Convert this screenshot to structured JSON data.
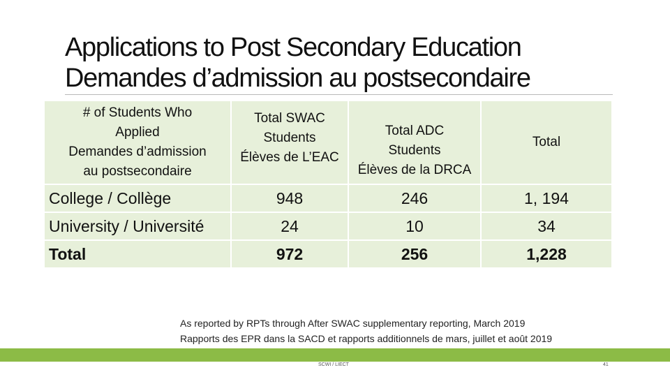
{
  "slide": {
    "title_line1": "Applications to Post Secondary Education",
    "title_line2": "Demandes d’admission au postsecondaire"
  },
  "table": {
    "headers": [
      [
        "# of Students Who",
        "Applied",
        "Demandes d’admission",
        "au postsecondaire"
      ],
      [
        "Total SWAC",
        "Students",
        "Élèves de L’EAC"
      ],
      [
        "Total ADC",
        "Students",
        "Élèves de la DRCA"
      ],
      [
        "Total"
      ]
    ],
    "rows": [
      {
        "label": "College / Collège",
        "swac": "948",
        "adc": "246",
        "total": "1, 194"
      },
      {
        "label": "University / Université",
        "swac": "24",
        "adc": "10",
        "total": "34"
      },
      {
        "label": "Total",
        "swac": "972",
        "adc": "256",
        "total": "1,228"
      }
    ]
  },
  "notes": {
    "line1": "As reported by RPTs through After SWAC supplementary reporting, March 2019",
    "line2": "Rapports des EPR dans la SACD et rapports additionnels de mars, juillet et août 2019"
  },
  "footer": {
    "center": "SCWI / LIECT",
    "page_number": "41"
  },
  "colors": {
    "table_fill": "#e7f0da",
    "footer_green": "#8cbb46"
  }
}
